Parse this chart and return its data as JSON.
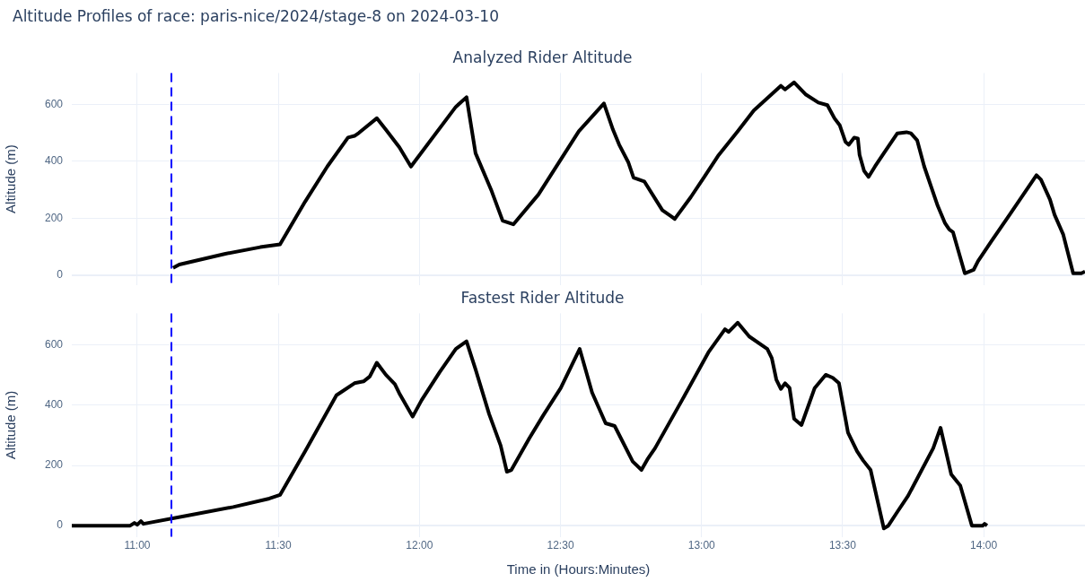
{
  "chart_data": [
    {
      "type": "line",
      "title": "Altitude Profiles of race: paris-nice/2024/stage-8 on 2024-03-10",
      "subtitle": "Analyzed Rider Altitude",
      "ylabel": "Altitude (m)",
      "series": [
        {
          "color": "#000000",
          "x": [
            11.127,
            11.149,
            11.309,
            11.436,
            11.506,
            11.595,
            11.674,
            11.747,
            11.77,
            11.786,
            11.849,
            11.881,
            11.929,
            11.97,
            12.129,
            12.167,
            12.199,
            12.256,
            12.295,
            12.333,
            12.422,
            12.565,
            12.654,
            12.686,
            12.708,
            12.74,
            12.759,
            12.797,
            12.861,
            12.893,
            12.905,
            12.962,
            13.01,
            13.058,
            13.128,
            13.185,
            13.281,
            13.296,
            13.328,
            13.37,
            13.414,
            13.446,
            13.471,
            13.49,
            13.51,
            13.522,
            13.541,
            13.554,
            13.56,
            13.576,
            13.592,
            13.615,
            13.646,
            13.694,
            13.726,
            13.742,
            13.764,
            13.789,
            13.837,
            13.863,
            13.878,
            13.891,
            13.933,
            13.964,
            13.98,
            14.028,
            14.092,
            14.187,
            14.203,
            14.235,
            14.251,
            14.282,
            14.317,
            14.346,
            14.359
          ],
          "values": [
            25,
            37,
            74,
            98,
            108,
            258,
            382,
            483,
            489,
            500,
            551,
            511,
            449,
            381,
            591,
            625,
            428,
            295,
            191,
            178,
            283,
            505,
            603,
            511,
            458,
            397,
            342,
            329,
            228,
            206,
            197,
            274,
            345,
            418,
            505,
            578,
            665,
            652,
            677,
            634,
            606,
            597,
            551,
            526,
            468,
            458,
            483,
            480,
            422,
            366,
            345,
            382,
            428,
            498,
            502,
            498,
            474,
            382,
            243,
            182,
            160,
            151,
            6,
            18,
            49,
            120,
            212,
            351,
            335,
            265,
            212,
            142,
            6,
            6,
            12
          ]
        }
      ],
      "xlim": [
        10.768,
        14.359
      ],
      "ylim": [
        -35,
        710
      ],
      "xticks": [
        {
          "value": 11,
          "label": null
        },
        {
          "value": 11.5,
          "label": null
        },
        {
          "value": 12,
          "label": null
        },
        {
          "value": 12.5,
          "label": null
        },
        {
          "value": 13,
          "label": null
        },
        {
          "value": 13.5,
          "label": null
        },
        {
          "value": 14,
          "label": null
        }
      ],
      "yticks": [
        0,
        200,
        400,
        600
      ],
      "tick_labels": "y",
      "grid": true,
      "legend": false,
      "ref_lines": [
        {
          "axis": "x",
          "value": 11.121,
          "color": "#0000ff",
          "line_style": "dashed"
        }
      ]
    },
    {
      "type": "line",
      "subtitle": "Fastest Rider Altitude",
      "xlabel": "Time in (Hours:Minutes)",
      "ylabel": "Altitude (m)",
      "series": [
        {
          "color": "#000000",
          "x": [
            10.768,
            10.975,
            10.99,
            11.0,
            11.013,
            11.022,
            11.181,
            11.34,
            11.468,
            11.506,
            11.595,
            11.706,
            11.77,
            11.802,
            11.824,
            11.849,
            11.881,
            11.913,
            11.929,
            11.976,
            12.008,
            12.072,
            12.129,
            12.167,
            12.199,
            12.247,
            12.288,
            12.31,
            12.326,
            12.39,
            12.438,
            12.501,
            12.568,
            12.612,
            12.66,
            12.692,
            12.756,
            12.787,
            12.81,
            12.835,
            12.931,
            13.026,
            13.083,
            13.096,
            13.128,
            13.169,
            13.233,
            13.249,
            13.265,
            13.281,
            13.296,
            13.312,
            13.328,
            13.354,
            13.401,
            13.44,
            13.465,
            13.487,
            13.519,
            13.551,
            13.573,
            13.599,
            13.646,
            13.662,
            13.694,
            13.732,
            13.821,
            13.847,
            13.885,
            13.917,
            13.958,
            13.996,
            14.003,
            14.012
          ],
          "values": [
            0,
            0,
            9,
            3,
            15,
            6,
            34,
            62,
            90,
            102,
            247,
            433,
            473,
            479,
            495,
            541,
            501,
            470,
            439,
            362,
            417,
            510,
            587,
            612,
            519,
            371,
            266,
            179,
            185,
            291,
            365,
            457,
            587,
            442,
            340,
            331,
            213,
            185,
            223,
            257,
            417,
            578,
            652,
            643,
            674,
            628,
            587,
            556,
            485,
            454,
            473,
            457,
            355,
            334,
            457,
            501,
            491,
            473,
            309,
            247,
            216,
            185,
            -9,
            0,
            46,
            99,
            257,
            325,
            170,
            133,
            0,
            0,
            6,
            0
          ]
        }
      ],
      "xlim": [
        10.768,
        14.359
      ],
      "ylim": [
        -37,
        705
      ],
      "xticks": [
        {
          "value": 11,
          "label": "11:00"
        },
        {
          "value": 11.5,
          "label": "11:30"
        },
        {
          "value": 12,
          "label": "12:00"
        },
        {
          "value": 12.5,
          "label": "12:30"
        },
        {
          "value": 13,
          "label": "13:00"
        },
        {
          "value": 13.5,
          "label": "13:30"
        },
        {
          "value": 14,
          "label": "14:00"
        }
      ],
      "yticks": [
        0,
        200,
        400,
        600
      ],
      "grid": true,
      "legend": false,
      "ref_lines": [
        {
          "axis": "x",
          "value": 11.121,
          "color": "#0000ff",
          "line_style": "dashed"
        }
      ]
    }
  ]
}
